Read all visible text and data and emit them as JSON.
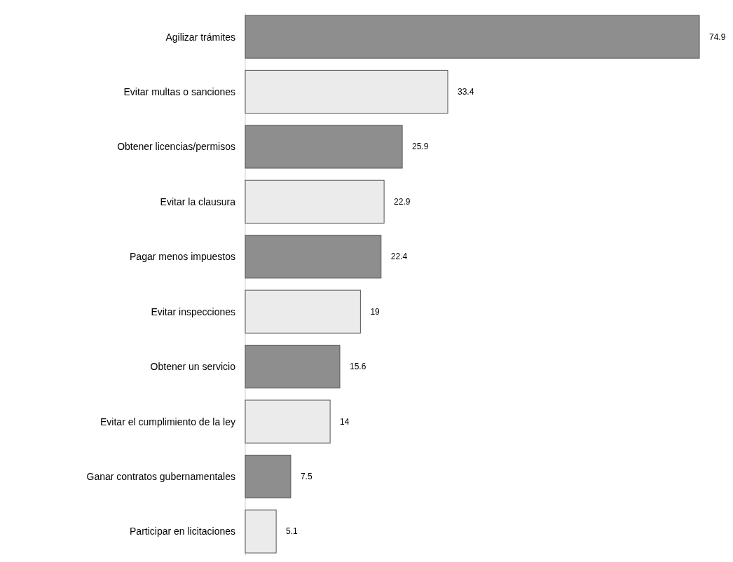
{
  "chart_data": {
    "type": "bar",
    "orientation": "horizontal",
    "categories": [
      "Agilizar trámites",
      "Evitar multas o sanciones",
      "Obtener licencias/permisos",
      "Evitar la clausura",
      "Pagar menos impuestos",
      "Evitar inspecciones",
      "Obtener un servicio",
      "Evitar el cumplimiento de la ley",
      "Ganar contratos gubernamentales",
      "Participar en licitaciones"
    ],
    "values": [
      74.9,
      33.4,
      25.9,
      22.9,
      22.4,
      19,
      15.6,
      14,
      7.5,
      5.1
    ],
    "colors": [
      "#8e8e8e",
      "#ebebeb",
      "#8e8e8e",
      "#ebebeb",
      "#8e8e8e",
      "#ebebeb",
      "#8e8e8e",
      "#ebebeb",
      "#8e8e8e",
      "#ebebeb"
    ],
    "data_labels": true
  }
}
